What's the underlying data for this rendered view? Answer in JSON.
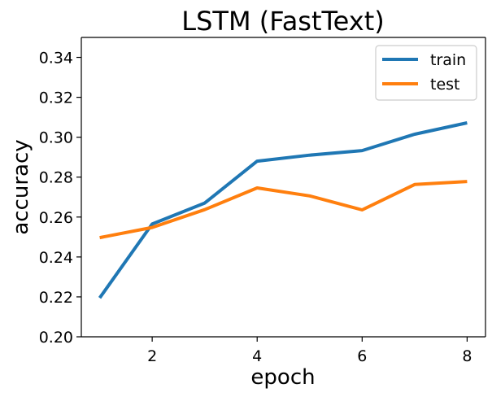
{
  "chart_data": {
    "type": "line",
    "title": "LSTM (FastText)",
    "xlabel": "epoch",
    "ylabel": "accuracy",
    "xlim": [
      0.65,
      8.35
    ],
    "ylim": [
      0.2,
      0.35
    ],
    "xticks": [
      2,
      4,
      6,
      8
    ],
    "yticks": [
      0.2,
      0.22,
      0.24,
      0.26,
      0.28,
      0.3,
      0.32,
      0.34
    ],
    "xtick_labels": [
      "2",
      "4",
      "6",
      "8"
    ],
    "ytick_labels": [
      "0.20",
      "0.22",
      "0.24",
      "0.26",
      "0.28",
      "0.30",
      "0.32",
      "0.34"
    ],
    "x": [
      1,
      2,
      3,
      4,
      5,
      6,
      7,
      8
    ],
    "series": [
      {
        "name": "train",
        "color": "#1f77b4",
        "values": [
          0.2195,
          0.2565,
          0.267,
          0.288,
          0.291,
          0.2933,
          0.3015,
          0.3072
        ]
      },
      {
        "name": "test",
        "color": "#ff7f0e",
        "values": [
          0.2497,
          0.2548,
          0.2637,
          0.2746,
          0.2706,
          0.2636,
          0.2763,
          0.2778
        ]
      }
    ],
    "grid": false,
    "legend_position": "top-right"
  }
}
